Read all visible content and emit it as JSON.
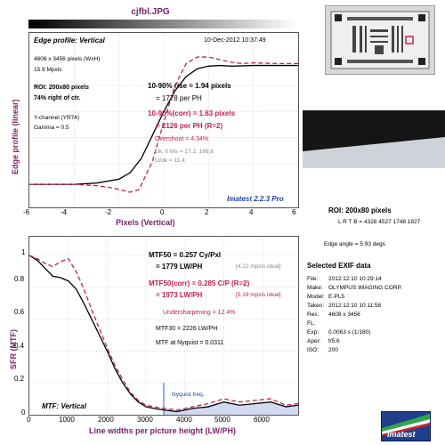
{
  "window": {
    "title": "cjfbl.JPG"
  },
  "edge_panel": {
    "title": "Edge profile: Vertical",
    "timestamp": "10-Dec-2012 10:37:49",
    "ylabel": "Edge profile (linear)",
    "xlabel": "Pixels (Vertical)",
    "xticks": [
      "-6",
      "-4",
      "-2",
      "0",
      "2",
      "4",
      "6"
    ],
    "lines": {
      "dims": "4608 x 3456 pixels (WxH)",
      "mpxls": "15.9 Mpxls",
      "roi": "ROI: 200x80 pixels",
      "right_of_ctr": "74% right of ctr.",
      "channel": "Y-channel  (YR74)",
      "gamma": "Gamma = 0.5",
      "rise": "10-90% rise = 1.94 pixels",
      "rise_ph": "= 1778 per PH",
      "rise_corr": "10-90%(corr) = 1.63 pixels",
      "rise_corr_ph": "= 2126 per PH   (R=2)",
      "overshoot": "Overshoot = 4.34%",
      "dk_lt": "Dk, lt lvls = 17.2, 186.6",
      "ltdk": "Lt/dk = 11.4"
    },
    "version": "Imatest 2.2.3 Pro"
  },
  "mtf_panel": {
    "title": "MTF: Vertical",
    "ylabel": "SFR (MTF)",
    "xlabel": "Line widths per picture height (LW/PH)",
    "yticks": [
      "0",
      "0.2",
      "0.4",
      "0.6",
      "0.8",
      "1"
    ],
    "xticks": [
      "0",
      "1000",
      "2000",
      "3000",
      "4000",
      "5000",
      "6000"
    ],
    "lines": {
      "mtf50": "MTF50 = 0.257 Cy/Pxl",
      "mtf50_lw": "= 1779 LW/PH",
      "ideal1": "[4.22 mpxls ideal]",
      "mtf50c": "MTF50(corr) = 0.285 C/P   (R=2)",
      "mtf50c_lw": "= 1973 LW/PH",
      "ideal2": "[5.19 mpxls ideal]",
      "undersharp": "Undersharpening = 12.4%",
      "mtf30": "MTF30 = 2226 LW/PH",
      "nyq": "MTF at Nyquist = 0.0311",
      "nyq_label": "Nyquist freq."
    }
  },
  "roi_info": {
    "title": "ROI: 200x80 pixels",
    "lrtb": "L R T B = 4328 4527  1748 1827",
    "edge_angle": "Edge angle = 5.93 degs"
  },
  "exif": {
    "title": "Selected EXIF data",
    "rows": [
      {
        "k": "File:",
        "v": "2012:12:10 10:29:14"
      },
      {
        "k": "Make:",
        "v": "OLYMPUS IMAGING CORP."
      },
      {
        "k": "Model:",
        "v": "E-PL5"
      },
      {
        "k": "Taken:",
        "v": "2012:12:10 10:11:58"
      },
      {
        "k": "Res:",
        "v": "4608 x 3456"
      },
      {
        "k": "FL:",
        "v": ""
      },
      {
        "k": "Exp:",
        "v": "0.0063 s  (1/160)"
      },
      {
        "k": "Aper:",
        "v": "f/5.6"
      },
      {
        "k": "ISO:",
        "v": "200"
      }
    ]
  },
  "logo": {
    "text": "Imatest"
  },
  "colors": {
    "measured": "#000000",
    "corrected": "#c0204a",
    "accent": "#7a1f6a",
    "nyquist": "#3a55c8"
  },
  "chart_data": [
    {
      "type": "line",
      "title": "Edge profile: Vertical",
      "xlabel": "Pixels (Vertical)",
      "ylabel": "Edge profile (linear)",
      "xlim": [
        -6,
        6
      ],
      "series": [
        {
          "name": "measured",
          "x": [
            -6,
            -5,
            -4,
            -3,
            -2,
            -1.5,
            -1,
            -0.5,
            0,
            0.5,
            1,
            1.5,
            2,
            2.5,
            3,
            4,
            5,
            6
          ],
          "y": [
            0.04,
            0.04,
            0.04,
            0.05,
            0.08,
            0.13,
            0.24,
            0.42,
            0.6,
            0.76,
            0.87,
            0.93,
            0.95,
            0.955,
            0.95,
            0.955,
            0.955,
            0.955
          ]
        },
        {
          "name": "corrected",
          "x": [
            -6,
            -5,
            -4,
            -3,
            -2.2,
            -2,
            -1.5,
            -1.1,
            -0.5,
            0,
            0.5,
            1,
            1.5,
            2,
            2.5,
            3,
            3.5,
            4,
            5,
            6
          ],
          "y": [
            0.04,
            0.04,
            0.04,
            0.03,
            0.01,
            0.0,
            -0.02,
            0.0,
            0.22,
            0.52,
            0.8,
            0.97,
            1.02,
            1.02,
            1.0,
            0.98,
            0.97,
            0.975,
            0.97,
            0.97
          ]
        }
      ]
    },
    {
      "type": "line",
      "title": "MTF: Vertical",
      "xlabel": "Line widths per picture height (LW/PH)",
      "ylabel": "SFR (MTF)",
      "xlim": [
        0,
        6912
      ],
      "ylim": [
        0,
        1.05
      ],
      "series": [
        {
          "name": "measured",
          "x": [
            0,
            200,
            400,
            600,
            800,
            1000,
            1200,
            1400,
            1600,
            1800,
            2000,
            2200,
            2400,
            2600,
            2800,
            3000,
            3200,
            3456,
            3800,
            4200,
            4600,
            5000,
            5400,
            5800,
            6200,
            6600,
            6912
          ],
          "y": [
            1.0,
            0.97,
            0.92,
            0.87,
            0.86,
            0.84,
            0.79,
            0.7,
            0.6,
            0.5,
            0.4,
            0.29,
            0.2,
            0.13,
            0.08,
            0.05,
            0.04,
            0.03,
            0.02,
            0.04,
            0.05,
            0.08,
            0.06,
            0.07,
            0.08,
            0.05,
            0.06
          ]
        },
        {
          "name": "corrected",
          "x": [
            0,
            200,
            400,
            600,
            800,
            1000,
            1200,
            1400,
            1600,
            1800,
            2000,
            2200,
            2400,
            2600,
            2800,
            3000,
            3200,
            3456,
            3800,
            4200,
            4600,
            5000,
            5400,
            5800,
            6200,
            6600,
            6912
          ],
          "y": [
            1.0,
            0.98,
            0.95,
            0.93,
            0.96,
            0.98,
            0.9,
            0.79,
            0.66,
            0.54,
            0.42,
            0.31,
            0.22,
            0.14,
            0.09,
            0.06,
            0.05,
            0.04,
            0.03,
            0.05,
            0.07,
            0.1,
            0.08,
            0.09,
            0.1,
            0.06,
            0.07
          ]
        }
      ],
      "nyquist": 3456
    }
  ]
}
